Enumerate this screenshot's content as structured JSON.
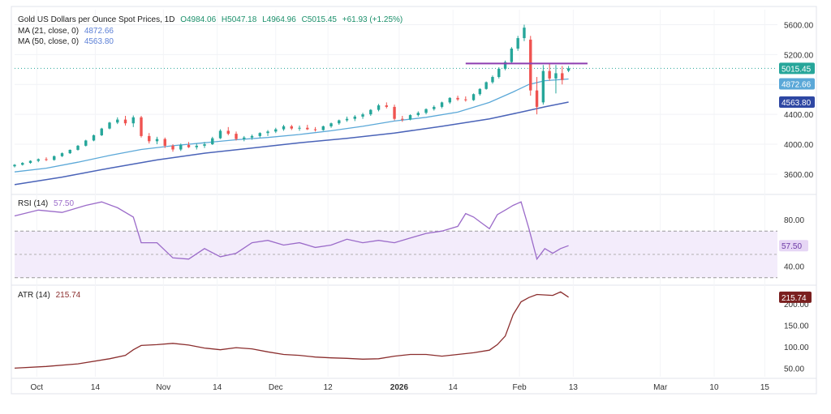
{
  "header": {
    "symbol": "Gold US Dollars per Ounce Spot Prices, 1D",
    "open": "O4984.06",
    "high": "H5047.18",
    "low": "L4964.96",
    "close": "C5015.45",
    "change": "+61.93 (+1.25%)"
  },
  "legend": {
    "ma21_label": "MA (21, close, 0)",
    "ma21_value": "4872.66",
    "ma50_label": "MA (50, close, 0)",
    "ma50_value": "4563.80",
    "rsi_label": "RSI (14)",
    "rsi_value": "57.50",
    "atr_label": "ATR (14)",
    "atr_value": "215.74"
  },
  "colors": {
    "up": "#26a69a",
    "down": "#ef5350",
    "ma21": "#5ba8d8",
    "ma50": "#4a63b8",
    "rsi": "#9b6bc9",
    "atr": "#8b2e2e",
    "resistance": "#8e3fb0"
  },
  "chart_data": [
    {
      "type": "candlestick",
      "title": "Gold US Dollars per Ounce Spot Prices, 1D",
      "y_ticks": [
        3600,
        4000,
        4400,
        4800,
        5200,
        5600
      ],
      "y_tick_labels": [
        "3600.00",
        "4000.00",
        "4400.00",
        "4800.00",
        "5200.00",
        "5600.00"
      ],
      "ylim": [
        3350,
        5800
      ],
      "x_labels": [
        {
          "label": "Oct",
          "index": 14
        },
        {
          "label": "14",
          "index": 51
        },
        {
          "label": "Nov",
          "index": 94
        },
        {
          "label": "14",
          "index": 128
        },
        {
          "label": "Dec",
          "index": 165
        },
        {
          "label": "12",
          "index": 198
        },
        {
          "label": "2026",
          "index": 243
        },
        {
          "label": "14",
          "index": 277
        },
        {
          "label": "Feb",
          "index": 319
        },
        {
          "label": "13",
          "index": 353
        },
        {
          "label": "Mar",
          "index": 408
        },
        {
          "label": "10",
          "index": 442
        },
        {
          "label": "15",
          "index": 474
        }
      ],
      "x_range": [
        0,
        482
      ],
      "resistance_level": {
        "value": 5080,
        "start_index": 285,
        "end_index": 362
      },
      "last_price": {
        "value": 5015.45,
        "label": "5015.45"
      },
      "ma21_last": {
        "value": 4872.66,
        "label": "4872.66"
      },
      "ma50_last": {
        "value": 4563.8,
        "label": "4563.80"
      },
      "candles": [
        {
          "i": 0,
          "o": 3705,
          "h": 3735,
          "l": 3690,
          "c": 3725
        },
        {
          "i": 5,
          "o": 3725,
          "h": 3760,
          "l": 3715,
          "c": 3750
        },
        {
          "i": 10,
          "o": 3750,
          "h": 3785,
          "l": 3740,
          "c": 3778
        },
        {
          "i": 15,
          "o": 3778,
          "h": 3810,
          "l": 3760,
          "c": 3800
        },
        {
          "i": 20,
          "o": 3800,
          "h": 3825,
          "l": 3775,
          "c": 3790
        },
        {
          "i": 25,
          "o": 3790,
          "h": 3850,
          "l": 3780,
          "c": 3840
        },
        {
          "i": 30,
          "o": 3840,
          "h": 3890,
          "l": 3830,
          "c": 3880
        },
        {
          "i": 35,
          "o": 3880,
          "h": 3930,
          "l": 3870,
          "c": 3925
        },
        {
          "i": 40,
          "o": 3925,
          "h": 3990,
          "l": 3915,
          "c": 3980
        },
        {
          "i": 45,
          "o": 3980,
          "h": 4060,
          "l": 3970,
          "c": 4050
        },
        {
          "i": 50,
          "o": 4050,
          "h": 4130,
          "l": 4040,
          "c": 4120
        },
        {
          "i": 55,
          "o": 4120,
          "h": 4220,
          "l": 4110,
          "c": 4210
        },
        {
          "i": 60,
          "o": 4210,
          "h": 4300,
          "l": 4200,
          "c": 4290
        },
        {
          "i": 65,
          "o": 4290,
          "h": 4360,
          "l": 4270,
          "c": 4330
        },
        {
          "i": 70,
          "o": 4330,
          "h": 4380,
          "l": 4250,
          "c": 4280
        },
        {
          "i": 75,
          "o": 4280,
          "h": 4385,
          "l": 4230,
          "c": 4360
        },
        {
          "i": 80,
          "o": 4360,
          "h": 4380,
          "l": 4090,
          "c": 4110
        },
        {
          "i": 85,
          "o": 4110,
          "h": 4150,
          "l": 4010,
          "c": 4040
        },
        {
          "i": 90,
          "o": 4040,
          "h": 4100,
          "l": 4000,
          "c": 4070
        },
        {
          "i": 95,
          "o": 4070,
          "h": 4090,
          "l": 3950,
          "c": 3980
        },
        {
          "i": 100,
          "o": 3980,
          "h": 4000,
          "l": 3900,
          "c": 3930
        },
        {
          "i": 105,
          "o": 3930,
          "h": 4010,
          "l": 3910,
          "c": 3990
        },
        {
          "i": 110,
          "o": 3990,
          "h": 4030,
          "l": 3950,
          "c": 3960
        },
        {
          "i": 115,
          "o": 3960,
          "h": 4010,
          "l": 3930,
          "c": 3980
        },
        {
          "i": 120,
          "o": 3980,
          "h": 4030,
          "l": 3950,
          "c": 4000
        },
        {
          "i": 125,
          "o": 4000,
          "h": 4100,
          "l": 3990,
          "c": 4080
        },
        {
          "i": 130,
          "o": 4080,
          "h": 4200,
          "l": 4070,
          "c": 4180
        },
        {
          "i": 135,
          "o": 4180,
          "h": 4230,
          "l": 4120,
          "c": 4140
        },
        {
          "i": 140,
          "o": 4140,
          "h": 4170,
          "l": 4050,
          "c": 4070
        },
        {
          "i": 145,
          "o": 4070,
          "h": 4110,
          "l": 4040,
          "c": 4090
        },
        {
          "i": 150,
          "o": 4090,
          "h": 4130,
          "l": 4060,
          "c": 4110
        },
        {
          "i": 155,
          "o": 4110,
          "h": 4160,
          "l": 4090,
          "c": 4150
        },
        {
          "i": 160,
          "o": 4150,
          "h": 4190,
          "l": 4110,
          "c": 4170
        },
        {
          "i": 165,
          "o": 4170,
          "h": 4220,
          "l": 4150,
          "c": 4200
        },
        {
          "i": 170,
          "o": 4200,
          "h": 4260,
          "l": 4180,
          "c": 4240
        },
        {
          "i": 175,
          "o": 4240,
          "h": 4260,
          "l": 4190,
          "c": 4210
        },
        {
          "i": 180,
          "o": 4210,
          "h": 4250,
          "l": 4180,
          "c": 4220
        },
        {
          "i": 185,
          "o": 4220,
          "h": 4260,
          "l": 4190,
          "c": 4200
        },
        {
          "i": 190,
          "o": 4200,
          "h": 4230,
          "l": 4170,
          "c": 4190
        },
        {
          "i": 195,
          "o": 4190,
          "h": 4250,
          "l": 4180,
          "c": 4240
        },
        {
          "i": 200,
          "o": 4240,
          "h": 4290,
          "l": 4220,
          "c": 4280
        },
        {
          "i": 205,
          "o": 4280,
          "h": 4330,
          "l": 4260,
          "c": 4320
        },
        {
          "i": 210,
          "o": 4320,
          "h": 4370,
          "l": 4300,
          "c": 4340
        },
        {
          "i": 215,
          "o": 4340,
          "h": 4390,
          "l": 4310,
          "c": 4370
        },
        {
          "i": 220,
          "o": 4370,
          "h": 4420,
          "l": 4340,
          "c": 4400
        },
        {
          "i": 225,
          "o": 4400,
          "h": 4470,
          "l": 4380,
          "c": 4460
        },
        {
          "i": 230,
          "o": 4460,
          "h": 4540,
          "l": 4440,
          "c": 4520
        },
        {
          "i": 235,
          "o": 4520,
          "h": 4560,
          "l": 4480,
          "c": 4500
        },
        {
          "i": 240,
          "o": 4500,
          "h": 4530,
          "l": 4320,
          "c": 4340
        },
        {
          "i": 245,
          "o": 4340,
          "h": 4380,
          "l": 4300,
          "c": 4330
        },
        {
          "i": 250,
          "o": 4330,
          "h": 4400,
          "l": 4320,
          "c": 4390
        },
        {
          "i": 255,
          "o": 4390,
          "h": 4440,
          "l": 4370,
          "c": 4420
        },
        {
          "i": 260,
          "o": 4420,
          "h": 4480,
          "l": 4400,
          "c": 4470
        },
        {
          "i": 265,
          "o": 4470,
          "h": 4520,
          "l": 4450,
          "c": 4500
        },
        {
          "i": 270,
          "o": 4500,
          "h": 4570,
          "l": 4480,
          "c": 4560
        },
        {
          "i": 275,
          "o": 4560,
          "h": 4630,
          "l": 4540,
          "c": 4620
        },
        {
          "i": 280,
          "o": 4620,
          "h": 4650,
          "l": 4580,
          "c": 4600
        },
        {
          "i": 285,
          "o": 4600,
          "h": 4640,
          "l": 4570,
          "c": 4590
        },
        {
          "i": 290,
          "o": 4590,
          "h": 4680,
          "l": 4580,
          "c": 4670
        },
        {
          "i": 294,
          "o": 4670,
          "h": 4750,
          "l": 4650,
          "c": 4740
        },
        {
          "i": 298,
          "o": 4740,
          "h": 4840,
          "l": 4730,
          "c": 4830
        },
        {
          "i": 302,
          "o": 4830,
          "h": 4920,
          "l": 4810,
          "c": 4900
        },
        {
          "i": 306,
          "o": 4900,
          "h": 5030,
          "l": 4880,
          "c": 5010
        },
        {
          "i": 310,
          "o": 5010,
          "h": 5120,
          "l": 4990,
          "c": 5100
        },
        {
          "i": 314,
          "o": 5100,
          "h": 5300,
          "l": 5080,
          "c": 5280
        },
        {
          "i": 318,
          "o": 5280,
          "h": 5450,
          "l": 5250,
          "c": 5420
        },
        {
          "i": 322,
          "o": 5420,
          "h": 5600,
          "l": 5380,
          "c": 5560
        },
        {
          "i": 326,
          "o": 5400,
          "h": 5450,
          "l": 4650,
          "c": 4720
        },
        {
          "i": 330,
          "o": 4720,
          "h": 4900,
          "l": 4400,
          "c": 4500
        },
        {
          "i": 334,
          "o": 4560,
          "h": 5060,
          "l": 4530,
          "c": 4980
        },
        {
          "i": 338,
          "o": 4980,
          "h": 5090,
          "l": 4850,
          "c": 4880
        },
        {
          "i": 342,
          "o": 4880,
          "h": 5060,
          "l": 4680,
          "c": 4950
        },
        {
          "i": 346,
          "o": 4950,
          "h": 5047,
          "l": 4800,
          "c": 4860
        },
        {
          "i": 350,
          "o": 4984,
          "h": 5047,
          "l": 4965,
          "c": 5015
        }
      ],
      "ma21": [
        [
          0,
          3630
        ],
        [
          20,
          3680
        ],
        [
          40,
          3760
        ],
        [
          60,
          3850
        ],
        [
          80,
          3930
        ],
        [
          100,
          3980
        ],
        [
          120,
          4020
        ],
        [
          140,
          4060
        ],
        [
          160,
          4090
        ],
        [
          180,
          4130
        ],
        [
          200,
          4180
        ],
        [
          220,
          4240
        ],
        [
          240,
          4310
        ],
        [
          260,
          4360
        ],
        [
          280,
          4430
        ],
        [
          300,
          4560
        ],
        [
          315,
          4700
        ],
        [
          325,
          4800
        ],
        [
          335,
          4850
        ],
        [
          350,
          4872.66
        ]
      ],
      "ma50": [
        [
          0,
          3460
        ],
        [
          30,
          3560
        ],
        [
          60,
          3680
        ],
        [
          90,
          3790
        ],
        [
          120,
          3880
        ],
        [
          150,
          3950
        ],
        [
          180,
          4020
        ],
        [
          210,
          4080
        ],
        [
          240,
          4150
        ],
        [
          270,
          4240
        ],
        [
          300,
          4340
        ],
        [
          320,
          4430
        ],
        [
          335,
          4500
        ],
        [
          350,
          4563.8
        ]
      ]
    },
    {
      "type": "line",
      "title": "RSI (14)",
      "y_tick_labels": [
        "40.00",
        "80.00"
      ],
      "y_ticks": [
        40,
        80
      ],
      "ylim": [
        25,
        100
      ],
      "band": [
        30,
        70
      ],
      "midline": 50,
      "last": {
        "value": 57.5,
        "label": "57.50"
      },
      "series": [
        [
          0,
          83
        ],
        [
          15,
          88
        ],
        [
          30,
          86
        ],
        [
          45,
          92
        ],
        [
          55,
          95
        ],
        [
          65,
          90
        ],
        [
          75,
          82
        ],
        [
          80,
          60
        ],
        [
          90,
          60
        ],
        [
          100,
          47
        ],
        [
          110,
          46
        ],
        [
          120,
          55
        ],
        [
          130,
          48
        ],
        [
          140,
          51
        ],
        [
          150,
          60
        ],
        [
          160,
          62
        ],
        [
          170,
          58
        ],
        [
          180,
          60
        ],
        [
          190,
          56
        ],
        [
          200,
          58
        ],
        [
          210,
          63
        ],
        [
          220,
          60
        ],
        [
          230,
          62
        ],
        [
          240,
          60
        ],
        [
          250,
          64
        ],
        [
          260,
          68
        ],
        [
          270,
          70
        ],
        [
          280,
          74
        ],
        [
          285,
          85
        ],
        [
          290,
          82
        ],
        [
          295,
          77
        ],
        [
          300,
          72
        ],
        [
          305,
          84
        ],
        [
          310,
          88
        ],
        [
          315,
          92
        ],
        [
          320,
          95
        ],
        [
          325,
          72
        ],
        [
          330,
          46
        ],
        [
          335,
          55
        ],
        [
          340,
          51
        ],
        [
          345,
          55
        ],
        [
          350,
          57.5
        ]
      ]
    },
    {
      "type": "line",
      "title": "ATR (14)",
      "y_tick_labels": [
        "50.00",
        "100.00",
        "150.00",
        "200.00"
      ],
      "y_ticks": [
        50,
        100,
        150,
        200
      ],
      "ylim": [
        30,
        240
      ],
      "last": {
        "value": 215.74,
        "label": "215.74"
      },
      "series": [
        [
          0,
          50
        ],
        [
          20,
          54
        ],
        [
          40,
          60
        ],
        [
          60,
          72
        ],
        [
          70,
          80
        ],
        [
          75,
          93
        ],
        [
          80,
          103
        ],
        [
          90,
          105
        ],
        [
          100,
          108
        ],
        [
          110,
          104
        ],
        [
          120,
          97
        ],
        [
          130,
          93
        ],
        [
          140,
          98
        ],
        [
          150,
          95
        ],
        [
          160,
          88
        ],
        [
          170,
          82
        ],
        [
          180,
          80
        ],
        [
          190,
          76
        ],
        [
          200,
          74
        ],
        [
          210,
          73
        ],
        [
          220,
          71
        ],
        [
          230,
          72
        ],
        [
          240,
          78
        ],
        [
          250,
          82
        ],
        [
          260,
          82
        ],
        [
          270,
          78
        ],
        [
          280,
          82
        ],
        [
          290,
          86
        ],
        [
          300,
          92
        ],
        [
          305,
          105
        ],
        [
          310,
          125
        ],
        [
          315,
          175
        ],
        [
          320,
          205
        ],
        [
          325,
          215
        ],
        [
          330,
          222
        ],
        [
          340,
          220
        ],
        [
          345,
          228
        ],
        [
          350,
          215.74
        ]
      ]
    }
  ],
  "x_axis": {
    "labels": [
      "Oct",
      "14",
      "Nov",
      "14",
      "Dec",
      "12",
      "2026",
      "14",
      "Feb",
      "13",
      "Mar",
      "10",
      "15"
    ]
  }
}
